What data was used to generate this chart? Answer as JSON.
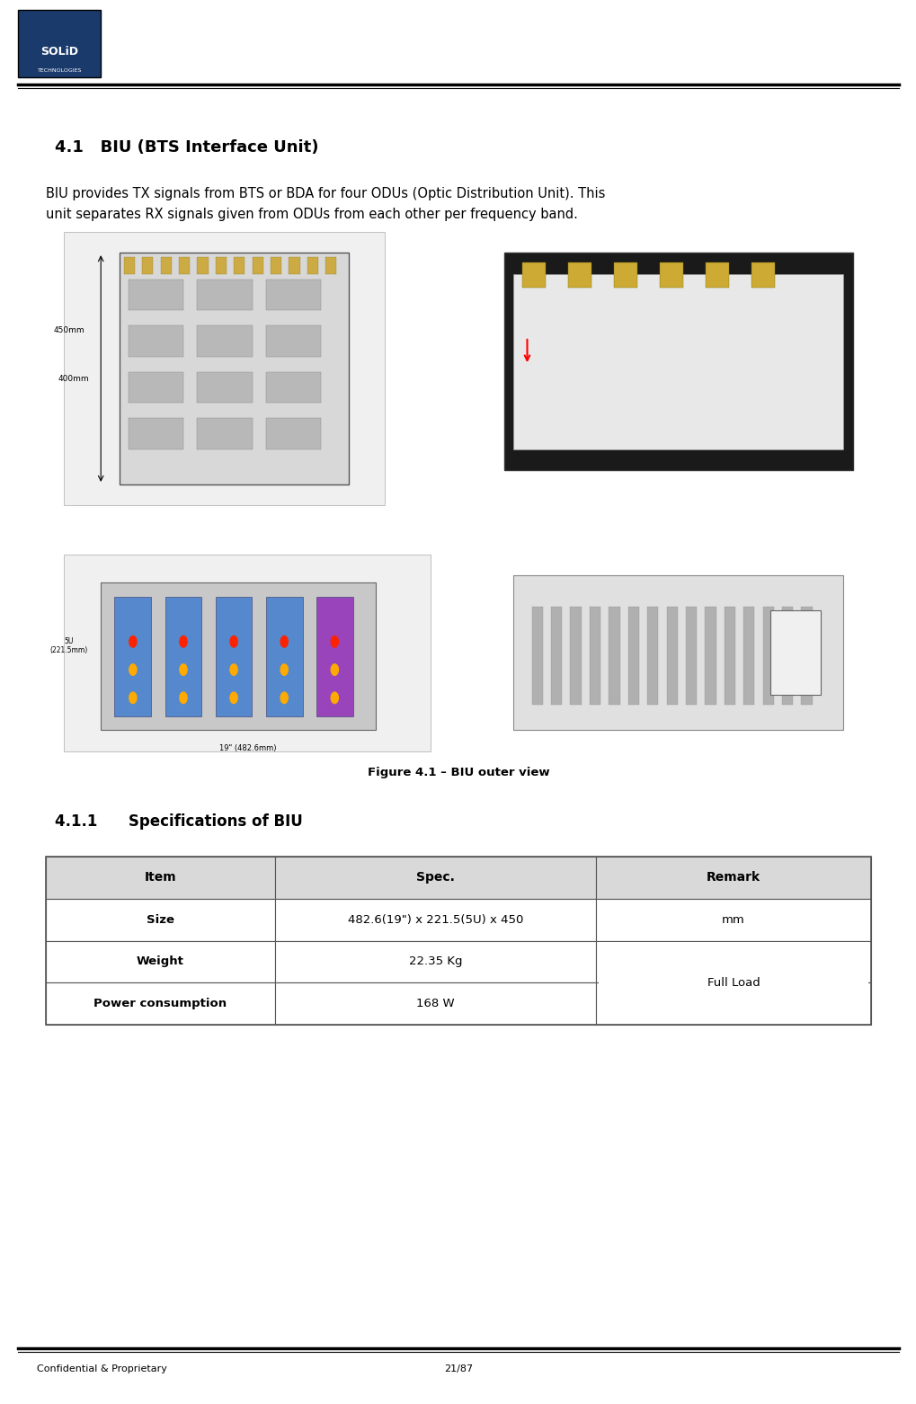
{
  "page_width": 10.2,
  "page_height": 15.62,
  "bg_color": "#ffffff",
  "header_logo_box_color": "#1a3a6b",
  "header_line_color": "#000000",
  "footer_line_color": "#000000",
  "footer_text_left": "Confidential & Proprietary",
  "footer_text_center": "21/87",
  "section_title": "4.1   BIU (BTS Interface Unit)",
  "body_text_line1": "BIU provides TX signals from BTS or BDA for four ODUs (Optic Distribution Unit). This",
  "body_text_line2": "unit separates RX signals given from ODUs from each other per frequency band.",
  "figure_caption": "Figure 4.1 – BIU outer view",
  "subsection_title": "4.1.1      Specifications of BIU",
  "table_headers": [
    "Item",
    "Spec.",
    "Remark"
  ],
  "table_rows": [
    [
      "Size",
      "482.6(19\") x 221.5(5U) x 450",
      "mm"
    ],
    [
      "Weight",
      "22.35 Kg",
      ""
    ],
    [
      "Power consumption",
      "168 W",
      ""
    ]
  ],
  "table_remark_merged": "Full Load",
  "header_bar_color": "#1a3a6b",
  "solid_text": "SOLiD",
  "tech_text": "TECHNOLOGIES",
  "text_color": "#000000",
  "gray_color": "#888888",
  "table_header_bg": "#d9d9d9",
  "table_border_color": "#555555"
}
